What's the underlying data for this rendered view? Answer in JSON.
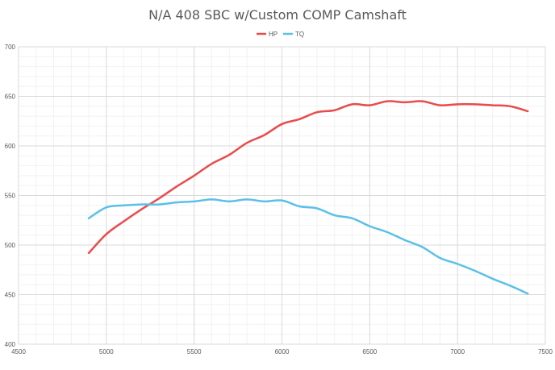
{
  "chart_data": {
    "type": "line",
    "title": "N/A 408 SBC w/Custom COMP Camshaft",
    "xlabel": "",
    "ylabel": "",
    "xlim": [
      4500,
      7500
    ],
    "ylim": [
      400,
      700
    ],
    "x_ticks": [
      4500,
      5000,
      5500,
      6000,
      6500,
      7000,
      7500
    ],
    "y_ticks": [
      400,
      450,
      500,
      550,
      600,
      650,
      700
    ],
    "minor_x_step": 100,
    "minor_y_step": 10,
    "grid": true,
    "legend_position": "top",
    "series": [
      {
        "name": "HP",
        "color": "#e84c4c",
        "x": [
          4900,
          5000,
          5100,
          5200,
          5300,
          5400,
          5500,
          5600,
          5700,
          5800,
          5900,
          6000,
          6100,
          6200,
          6300,
          6400,
          6500,
          6600,
          6700,
          6800,
          6900,
          7000,
          7100,
          7200,
          7300,
          7400
        ],
        "y": [
          492,
          511,
          524,
          536,
          547,
          559,
          570,
          582,
          591,
          603,
          611,
          622,
          627,
          634,
          636,
          642,
          641,
          645,
          644,
          645,
          641,
          642,
          642,
          641,
          640,
          635
        ]
      },
      {
        "name": "TQ",
        "color": "#5bc0e8",
        "x": [
          4900,
          5000,
          5100,
          5200,
          5300,
          5400,
          5500,
          5600,
          5700,
          5800,
          5900,
          6000,
          6100,
          6200,
          6300,
          6400,
          6500,
          6600,
          6700,
          6800,
          6900,
          7000,
          7100,
          7200,
          7300,
          7400
        ],
        "y": [
          527,
          538,
          540,
          541,
          541,
          543,
          544,
          546,
          544,
          546,
          544,
          545,
          539,
          537,
          530,
          527,
          519,
          513,
          505,
          498,
          487,
          481,
          474,
          466,
          459,
          451
        ]
      }
    ]
  }
}
